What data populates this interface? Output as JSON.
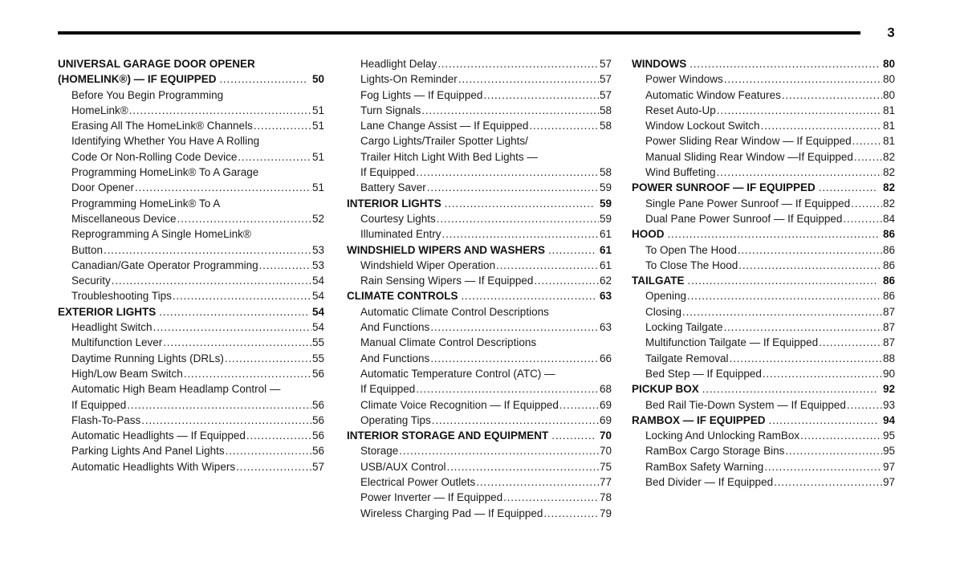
{
  "page": {
    "number": "3"
  },
  "toc": {
    "columns": [
      {
        "entries": [
          {
            "text": "UNIVERSAL GARAGE DOOR OPENER",
            "bold": true,
            "indent": false,
            "page": null
          },
          {
            "text": "(HOMELINK®) — IF EQUIPPED",
            "bold": true,
            "indent": false,
            "page": "50"
          },
          {
            "text": "Before You Begin Programming",
            "bold": false,
            "indent": true,
            "page": null
          },
          {
            "text": "HomeLink®",
            "bold": false,
            "indent": true,
            "page": "51"
          },
          {
            "text": "Erasing All The HomeLink® Channels",
            "bold": false,
            "indent": true,
            "page": "51"
          },
          {
            "text": "Identifying Whether You Have A Rolling",
            "bold": false,
            "indent": true,
            "page": null
          },
          {
            "text": "Code Or Non-Rolling Code Device",
            "bold": false,
            "indent": true,
            "page": "51"
          },
          {
            "text": "Programming HomeLink® To A Garage",
            "bold": false,
            "indent": true,
            "page": null
          },
          {
            "text": "Door Opener",
            "bold": false,
            "indent": true,
            "page": "51"
          },
          {
            "text": "Programming HomeLink® To A",
            "bold": false,
            "indent": true,
            "page": null
          },
          {
            "text": "Miscellaneous Device",
            "bold": false,
            "indent": true,
            "page": "52"
          },
          {
            "text": "Reprogramming A Single HomeLink®",
            "bold": false,
            "indent": true,
            "page": null
          },
          {
            "text": "Button",
            "bold": false,
            "indent": true,
            "page": "53"
          },
          {
            "text": "Canadian/Gate Operator Programming",
            "bold": false,
            "indent": true,
            "page": "53"
          },
          {
            "text": "Security",
            "bold": false,
            "indent": true,
            "page": "54"
          },
          {
            "text": "Troubleshooting Tips",
            "bold": false,
            "indent": true,
            "page": "54"
          },
          {
            "text": "EXTERIOR LIGHTS",
            "bold": true,
            "indent": false,
            "page": "54"
          },
          {
            "text": "Headlight Switch",
            "bold": false,
            "indent": true,
            "page": "54"
          },
          {
            "text": "Multifunction Lever",
            "bold": false,
            "indent": true,
            "page": "55"
          },
          {
            "text": "Daytime Running Lights (DRLs)",
            "bold": false,
            "indent": true,
            "page": "55"
          },
          {
            "text": "High/Low Beam Switch",
            "bold": false,
            "indent": true,
            "page": "56"
          },
          {
            "text": "Automatic High Beam Headlamp Control —",
            "bold": false,
            "indent": true,
            "page": null
          },
          {
            "text": "If Equipped",
            "bold": false,
            "indent": true,
            "page": "56"
          },
          {
            "text": "Flash-To-Pass",
            "bold": false,
            "indent": true,
            "page": "56"
          },
          {
            "text": "Automatic Headlights — If Equipped",
            "bold": false,
            "indent": true,
            "page": "56"
          },
          {
            "text": "Parking Lights And Panel Lights",
            "bold": false,
            "indent": true,
            "page": "56"
          },
          {
            "text": "Automatic Headlights With Wipers",
            "bold": false,
            "indent": true,
            "page": "57"
          }
        ]
      },
      {
        "entries": [
          {
            "text": "Headlight Delay",
            "bold": false,
            "indent": true,
            "page": "57"
          },
          {
            "text": "Lights-On Reminder",
            "bold": false,
            "indent": true,
            "page": "57"
          },
          {
            "text": "Fog Lights — If Equipped",
            "bold": false,
            "indent": true,
            "page": "57"
          },
          {
            "text": "Turn Signals",
            "bold": false,
            "indent": true,
            "page": "58"
          },
          {
            "text": "Lane Change Assist — If Equipped",
            "bold": false,
            "indent": true,
            "page": "58"
          },
          {
            "text": "Cargo Lights/Trailer Spotter Lights/",
            "bold": false,
            "indent": true,
            "page": null
          },
          {
            "text": "Trailer Hitch Light With Bed Lights —",
            "bold": false,
            "indent": true,
            "page": null
          },
          {
            "text": "If Equipped",
            "bold": false,
            "indent": true,
            "page": "58"
          },
          {
            "text": "Battery Saver",
            "bold": false,
            "indent": true,
            "page": "59"
          },
          {
            "text": "INTERIOR LIGHTS",
            "bold": true,
            "indent": false,
            "page": "59"
          },
          {
            "text": "Courtesy Lights",
            "bold": false,
            "indent": true,
            "page": "59"
          },
          {
            "text": "Illuminated Entry",
            "bold": false,
            "indent": true,
            "page": "61"
          },
          {
            "text": "WINDSHIELD WIPERS AND WASHERS",
            "bold": true,
            "indent": false,
            "page": "61"
          },
          {
            "text": "Windshield Wiper Operation",
            "bold": false,
            "indent": true,
            "page": "61"
          },
          {
            "text": "Rain Sensing Wipers — If Equipped",
            "bold": false,
            "indent": true,
            "page": "62"
          },
          {
            "text": "CLIMATE CONTROLS",
            "bold": true,
            "indent": false,
            "page": "63"
          },
          {
            "text": "Automatic Climate Control Descriptions",
            "bold": false,
            "indent": true,
            "page": null
          },
          {
            "text": "And Functions",
            "bold": false,
            "indent": true,
            "page": "63"
          },
          {
            "text": "Manual Climate Control Descriptions",
            "bold": false,
            "indent": true,
            "page": null
          },
          {
            "text": "And Functions",
            "bold": false,
            "indent": true,
            "page": "66"
          },
          {
            "text": "Automatic Temperature Control (ATC) —",
            "bold": false,
            "indent": true,
            "page": null
          },
          {
            "text": "If Equipped",
            "bold": false,
            "indent": true,
            "page": "68"
          },
          {
            "text": "Climate Voice Recognition — If Equipped",
            "bold": false,
            "indent": true,
            "page": "69"
          },
          {
            "text": "Operating Tips",
            "bold": false,
            "indent": true,
            "page": "69"
          },
          {
            "text": "INTERIOR STORAGE AND EQUIPMENT",
            "bold": true,
            "indent": false,
            "page": "70"
          },
          {
            "text": "Storage",
            "bold": false,
            "indent": true,
            "page": "70"
          },
          {
            "text": "USB/AUX Control",
            "bold": false,
            "indent": true,
            "page": "75"
          },
          {
            "text": "Electrical Power Outlets",
            "bold": false,
            "indent": true,
            "page": "77"
          },
          {
            "text": "Power Inverter — If Equipped",
            "bold": false,
            "indent": true,
            "page": "78"
          },
          {
            "text": "Wireless Charging Pad — If Equipped",
            "bold": false,
            "indent": true,
            "page": "79"
          }
        ]
      },
      {
        "entries": [
          {
            "text": "WINDOWS",
            "bold": true,
            "indent": false,
            "page": "80"
          },
          {
            "text": "Power Windows",
            "bold": false,
            "indent": true,
            "page": "80"
          },
          {
            "text": "Automatic Window Features",
            "bold": false,
            "indent": true,
            "page": "80"
          },
          {
            "text": "Reset Auto-Up",
            "bold": false,
            "indent": true,
            "page": "81"
          },
          {
            "text": "Window Lockout Switch",
            "bold": false,
            "indent": true,
            "page": "81"
          },
          {
            "text": "Power Sliding Rear Window — If Equipped",
            "bold": false,
            "indent": true,
            "page": "81"
          },
          {
            "text": "Manual Sliding Rear Window —If Equipped",
            "bold": false,
            "indent": true,
            "page": "82"
          },
          {
            "text": "Wind Buffeting",
            "bold": false,
            "indent": true,
            "page": "82"
          },
          {
            "text": "POWER SUNROOF — IF EQUIPPED",
            "bold": true,
            "indent": false,
            "page": "82"
          },
          {
            "text": "Single Pane Power Sunroof — If Equipped",
            "bold": false,
            "indent": true,
            "page": "82"
          },
          {
            "text": "Dual Pane Power Sunroof — If Equipped",
            "bold": false,
            "indent": true,
            "page": "84"
          },
          {
            "text": "HOOD",
            "bold": true,
            "indent": false,
            "page": "86"
          },
          {
            "text": "To Open The Hood",
            "bold": false,
            "indent": true,
            "page": "86"
          },
          {
            "text": "To Close The Hood",
            "bold": false,
            "indent": true,
            "page": "86"
          },
          {
            "text": "TAILGATE",
            "bold": true,
            "indent": false,
            "page": "86"
          },
          {
            "text": "Opening",
            "bold": false,
            "indent": true,
            "page": "86"
          },
          {
            "text": "Closing",
            "bold": false,
            "indent": true,
            "page": "87"
          },
          {
            "text": "Locking Tailgate",
            "bold": false,
            "indent": true,
            "page": "87"
          },
          {
            "text": "Multifunction Tailgate — If Equipped",
            "bold": false,
            "indent": true,
            "page": "87"
          },
          {
            "text": "Tailgate Removal",
            "bold": false,
            "indent": true,
            "page": "88"
          },
          {
            "text": "Bed Step — If Equipped",
            "bold": false,
            "indent": true,
            "page": "90"
          },
          {
            "text": "PICKUP BOX",
            "bold": true,
            "indent": false,
            "page": "92"
          },
          {
            "text": "Bed Rail Tie-Down System — If Equipped",
            "bold": false,
            "indent": true,
            "page": "93"
          },
          {
            "text": "RAMBOX — IF EQUIPPED",
            "bold": true,
            "indent": false,
            "page": "94"
          },
          {
            "text": "Locking And Unlocking RamBox",
            "bold": false,
            "indent": true,
            "page": "95"
          },
          {
            "text": "RamBox Cargo Storage Bins",
            "bold": false,
            "indent": true,
            "page": "95"
          },
          {
            "text": "RamBox Safety Warning",
            "bold": false,
            "indent": true,
            "page": "97"
          },
          {
            "text": "Bed Divider — If Equipped",
            "bold": false,
            "indent": true,
            "page": "97"
          }
        ]
      }
    ]
  }
}
